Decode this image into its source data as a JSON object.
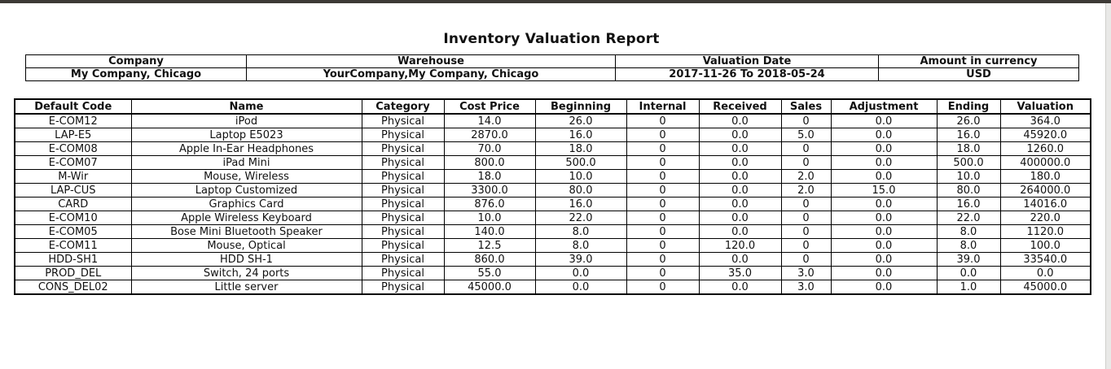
{
  "report": {
    "title": "Inventory Valuation Report"
  },
  "info": {
    "headers": [
      "Company",
      "Warehouse",
      "Valuation Date",
      "Amount in currency"
    ],
    "values": [
      "My Company, Chicago",
      "YourCompany,My Company, Chicago",
      "2017-11-26 To 2018-05-24",
      "USD"
    ]
  },
  "table": {
    "columns": [
      "Default Code",
      "Name",
      "Category",
      "Cost Price",
      "Beginning",
      "Internal",
      "Received",
      "Sales",
      "Adjustment",
      "Ending",
      "Valuation"
    ],
    "rows": [
      [
        "E-COM12",
        "iPod",
        "Physical",
        "14.0",
        "26.0",
        "0",
        "0.0",
        "0",
        "0.0",
        "26.0",
        "364.0"
      ],
      [
        "LAP-E5",
        "Laptop E5023",
        "Physical",
        "2870.0",
        "16.0",
        "0",
        "0.0",
        "5.0",
        "0.0",
        "16.0",
        "45920.0"
      ],
      [
        "E-COM08",
        "Apple In-Ear Headphones",
        "Physical",
        "70.0",
        "18.0",
        "0",
        "0.0",
        "0",
        "0.0",
        "18.0",
        "1260.0"
      ],
      [
        "E-COM07",
        "iPad Mini",
        "Physical",
        "800.0",
        "500.0",
        "0",
        "0.0",
        "0",
        "0.0",
        "500.0",
        "400000.0"
      ],
      [
        "M-Wir",
        "Mouse, Wireless",
        "Physical",
        "18.0",
        "10.0",
        "0",
        "0.0",
        "2.0",
        "0.0",
        "10.0",
        "180.0"
      ],
      [
        "LAP-CUS",
        "Laptop Customized",
        "Physical",
        "3300.0",
        "80.0",
        "0",
        "0.0",
        "2.0",
        "15.0",
        "80.0",
        "264000.0"
      ],
      [
        "CARD",
        "Graphics Card",
        "Physical",
        "876.0",
        "16.0",
        "0",
        "0.0",
        "0",
        "0.0",
        "16.0",
        "14016.0"
      ],
      [
        "E-COM10",
        "Apple Wireless Keyboard",
        "Physical",
        "10.0",
        "22.0",
        "0",
        "0.0",
        "0",
        "0.0",
        "22.0",
        "220.0"
      ],
      [
        "E-COM05",
        "Bose Mini Bluetooth Speaker",
        "Physical",
        "140.0",
        "8.0",
        "0",
        "0.0",
        "0",
        "0.0",
        "8.0",
        "1120.0"
      ],
      [
        "E-COM11",
        "Mouse, Optical",
        "Physical",
        "12.5",
        "8.0",
        "0",
        "120.0",
        "0",
        "0.0",
        "8.0",
        "100.0"
      ],
      [
        "HDD-SH1",
        "HDD SH-1",
        "Physical",
        "860.0",
        "39.0",
        "0",
        "0.0",
        "0",
        "0.0",
        "39.0",
        "33540.0"
      ],
      [
        "PROD_DEL",
        "Switch, 24 ports",
        "Physical",
        "55.0",
        "0.0",
        "0",
        "35.0",
        "3.0",
        "0.0",
        "0.0",
        "0.0"
      ],
      [
        "CONS_DEL02",
        "Little server",
        "Physical",
        "45000.0",
        "0.0",
        "0",
        "0.0",
        "3.0",
        "0.0",
        "1.0",
        "45000.0"
      ]
    ]
  }
}
